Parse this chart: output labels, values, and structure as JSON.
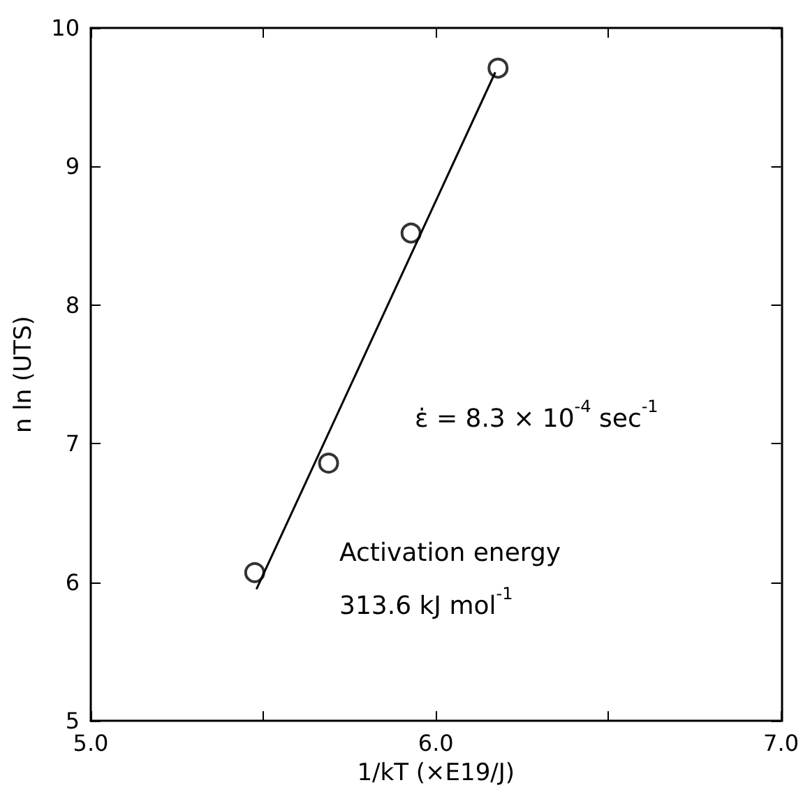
{
  "chart_data": {
    "type": "scatter",
    "xlabel": "1/kT (×E19/J)",
    "ylabel": "n ln (UTS)",
    "xlim": [
      5.0,
      7.0
    ],
    "xticks": [
      {
        "value": 5.0,
        "label": "5.0"
      },
      {
        "value": 5.5,
        "label": null
      },
      {
        "value": 6.0,
        "label": "6.0"
      },
      {
        "value": 6.5,
        "label": null
      },
      {
        "value": 7.0,
        "label": "7.0"
      }
    ],
    "ylim": [
      5,
      10
    ],
    "yticks": [
      5,
      6,
      7,
      8,
      9,
      10
    ],
    "annotations": [
      "ε̇ = 8.3 × 10$^{-4}$ sec$^{-1}$",
      "Activation energy\n313.6 kJ mol$^{-1}$"
    ],
    "series": [
      {
        "x": [
          5.475,
          5.689,
          5.928,
          6.18
        ],
        "values": [
          6.07,
          6.86,
          8.52,
          9.71
        ],
        "color": "#000000",
        "marker": "circle"
      },
      {
        "type": "line",
        "x": [
          5.48,
          6.172
        ],
        "values": [
          5.95,
          9.68
        ],
        "color": "#000000",
        "marker": "none",
        "line_style": "solid"
      }
    ]
  }
}
